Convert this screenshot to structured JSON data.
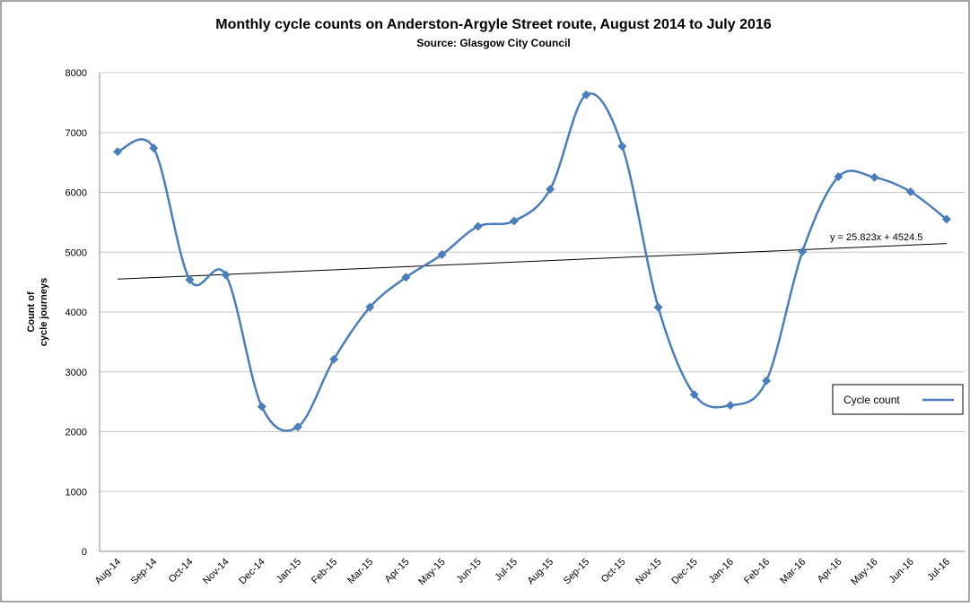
{
  "chart_data": {
    "type": "line",
    "title": "Monthly cycle counts on Anderston-Argyle Street route, August 2014 to July 2016",
    "subtitle": "Source: Glasgow City Council",
    "ylabel": [
      "Count of",
      "cycle journeys"
    ],
    "categories": [
      "Aug-14",
      "Sep-14",
      "Oct-14",
      "Nov-14",
      "Dec-14",
      "Jan-15",
      "Feb-15",
      "Mar-15",
      "Apr-15",
      "May-15",
      "Jun-15",
      "Jul-15",
      "Aug-15",
      "Sep-15",
      "Oct-15",
      "Nov-15",
      "Dec-15",
      "Jan-16",
      "Feb-16",
      "Mar-16",
      "Apr-16",
      "May-16",
      "Jun-16",
      "Jul-16"
    ],
    "series": [
      {
        "name": "Cycle count",
        "color": "#4a7ebb",
        "values": [
          6680,
          6740,
          4540,
          4620,
          2420,
          2080,
          3210,
          4080,
          4580,
          4960,
          5430,
          5520,
          6050,
          7630,
          6770,
          4080,
          2620,
          2440,
          2850,
          5010,
          6260,
          6250,
          6010,
          5550
        ]
      }
    ],
    "trendline": {
      "label": "y = 25.823x + 4524.5",
      "slope": 25.823,
      "intercept": 4524.5,
      "color": "#000000"
    },
    "ylim": [
      0,
      8000
    ],
    "yticks": [
      0,
      1000,
      2000,
      3000,
      4000,
      5000,
      6000,
      7000,
      8000
    ],
    "grid": true,
    "legend": "right"
  }
}
